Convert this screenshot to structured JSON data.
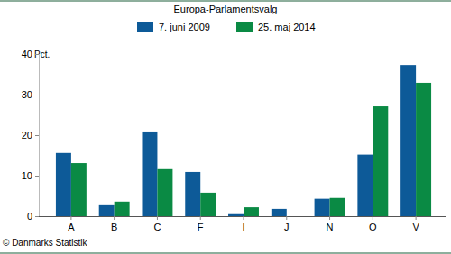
{
  "chart_data": {
    "type": "bar",
    "title": "Europa-Parlamentsvalg",
    "ylabel": "Pct.",
    "source": "© Danmarks Statistik",
    "categories": [
      "A",
      "B",
      "C",
      "F",
      "I",
      "J",
      "N",
      "O",
      "V"
    ],
    "series": [
      {
        "name": "7. juni 2009",
        "color": "#0d5a98",
        "values": [
          15.6,
          2.7,
          20.9,
          10.9,
          0.5,
          1.8,
          4.3,
          15.2,
          37.3
        ]
      },
      {
        "name": "25. maj 2014",
        "color": "#0a8a44",
        "values": [
          13.1,
          3.6,
          11.6,
          5.8,
          2.2,
          null,
          4.5,
          27.1,
          32.9
        ]
      }
    ],
    "ylim": [
      0,
      40
    ],
    "yticks": [
      0,
      10,
      20,
      30,
      40
    ],
    "grid": false,
    "legend": "top"
  }
}
